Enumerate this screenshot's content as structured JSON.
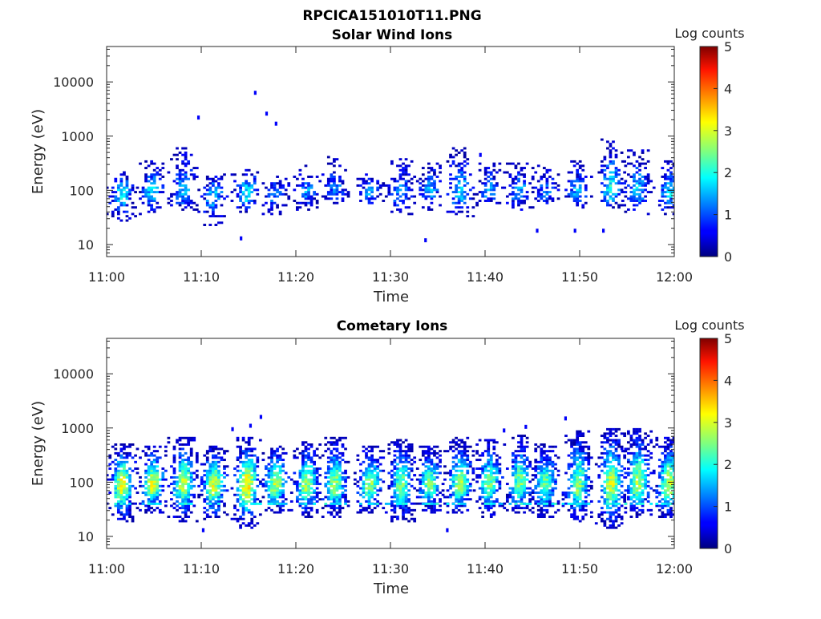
{
  "figure": {
    "title": "RPCICA151010T11.PNG"
  },
  "chart_data": [
    {
      "type": "heatmap",
      "title": "Solar Wind Ions",
      "xlabel": "Time",
      "ylabel": "Energy (eV)",
      "x_ticks": [
        "11:00",
        "11:10",
        "11:20",
        "11:30",
        "11:40",
        "11:50",
        "12:00"
      ],
      "x_range_minutes": [
        0,
        60
      ],
      "y_scale": "log",
      "y_ticks": [
        "10",
        "100",
        "1000",
        "10000"
      ],
      "ylim": [
        6,
        45000
      ],
      "colorbar": {
        "label": "Log counts",
        "ticks": [
          "0",
          "1",
          "2",
          "3",
          "4",
          "5"
        ],
        "range": [
          0,
          5
        ],
        "colormap": "jet"
      },
      "bursts": [
        {
          "t": 1.5,
          "e_low": 28,
          "e_high": 200,
          "peak": 1.9
        },
        {
          "t": 4.7,
          "e_low": 38,
          "e_high": 330,
          "peak": 1.7
        },
        {
          "t": 8.0,
          "e_low": 45,
          "e_high": 560,
          "peak": 1.5
        },
        {
          "t": 11.2,
          "e_low": 22,
          "e_high": 190,
          "peak": 1.6
        },
        {
          "t": 14.7,
          "e_low": 38,
          "e_high": 250,
          "peak": 1.9
        },
        {
          "t": 17.7,
          "e_low": 40,
          "e_high": 170,
          "peak": 1.3
        },
        {
          "t": 21.0,
          "e_low": 45,
          "e_high": 280,
          "peak": 1.3
        },
        {
          "t": 24.0,
          "e_low": 60,
          "e_high": 380,
          "peak": 1.2
        },
        {
          "t": 27.7,
          "e_low": 55,
          "e_high": 190,
          "peak": 1.3
        },
        {
          "t": 31.0,
          "e_low": 40,
          "e_high": 370,
          "peak": 1.3
        },
        {
          "t": 34.0,
          "e_low": 45,
          "e_high": 330,
          "peak": 1.4
        },
        {
          "t": 37.2,
          "e_low": 35,
          "e_high": 560,
          "peak": 1.7
        },
        {
          "t": 40.3,
          "e_low": 55,
          "e_high": 300,
          "peak": 1.3
        },
        {
          "t": 43.5,
          "e_low": 45,
          "e_high": 310,
          "peak": 1.5
        },
        {
          "t": 46.2,
          "e_low": 55,
          "e_high": 260,
          "peak": 1.2
        },
        {
          "t": 49.7,
          "e_low": 50,
          "e_high": 320,
          "peak": 1.5
        },
        {
          "t": 53.2,
          "e_low": 50,
          "e_high": 820,
          "peak": 2.0
        },
        {
          "t": 56.0,
          "e_low": 40,
          "e_high": 520,
          "peak": 1.6
        },
        {
          "t": 59.3,
          "e_low": 40,
          "e_high": 350,
          "peak": 1.7
        }
      ],
      "sparse_points": [
        {
          "t": 9.7,
          "e": 2200
        },
        {
          "t": 15.7,
          "e": 6300
        },
        {
          "t": 16.9,
          "e": 2600
        },
        {
          "t": 17.9,
          "e": 1700
        },
        {
          "t": 14.2,
          "e": 13
        },
        {
          "t": 33.7,
          "e": 12
        },
        {
          "t": 45.5,
          "e": 18
        },
        {
          "t": 49.5,
          "e": 18
        },
        {
          "t": 52.5,
          "e": 18
        },
        {
          "t": 39.5,
          "e": 450
        }
      ]
    },
    {
      "type": "heatmap",
      "title": "Cometary Ions",
      "xlabel": "Time",
      "ylabel": "Energy (eV)",
      "x_ticks": [
        "11:00",
        "11:10",
        "11:20",
        "11:30",
        "11:40",
        "11:50",
        "12:00"
      ],
      "x_range_minutes": [
        0,
        60
      ],
      "y_scale": "log",
      "y_ticks": [
        "10",
        "100",
        "1000",
        "10000"
      ],
      "ylim": [
        6,
        45000
      ],
      "colorbar": {
        "label": "Log counts",
        "ticks": [
          "0",
          "1",
          "2",
          "3",
          "4",
          "5"
        ],
        "range": [
          0,
          5
        ],
        "colormap": "jet"
      },
      "bursts": [
        {
          "t": 1.5,
          "e_low": 20,
          "e_high": 480,
          "peak": 3.1
        },
        {
          "t": 4.7,
          "e_low": 30,
          "e_high": 450,
          "peak": 3.0
        },
        {
          "t": 8.0,
          "e_low": 20,
          "e_high": 650,
          "peak": 2.8
        },
        {
          "t": 11.2,
          "e_low": 20,
          "e_high": 420,
          "peak": 2.9
        },
        {
          "t": 14.7,
          "e_low": 15,
          "e_high": 600,
          "peak": 3.2
        },
        {
          "t": 17.7,
          "e_low": 30,
          "e_high": 450,
          "peak": 2.8
        },
        {
          "t": 21.0,
          "e_low": 25,
          "e_high": 520,
          "peak": 2.7
        },
        {
          "t": 24.0,
          "e_low": 25,
          "e_high": 650,
          "peak": 2.6
        },
        {
          "t": 27.7,
          "e_low": 30,
          "e_high": 450,
          "peak": 2.6
        },
        {
          "t": 31.0,
          "e_low": 20,
          "e_high": 580,
          "peak": 2.4
        },
        {
          "t": 34.0,
          "e_low": 30,
          "e_high": 430,
          "peak": 2.5
        },
        {
          "t": 37.2,
          "e_low": 30,
          "e_high": 600,
          "peak": 2.7
        },
        {
          "t": 40.3,
          "e_low": 25,
          "e_high": 550,
          "peak": 2.5
        },
        {
          "t": 43.5,
          "e_low": 30,
          "e_high": 700,
          "peak": 2.5
        },
        {
          "t": 46.2,
          "e_low": 25,
          "e_high": 480,
          "peak": 2.4
        },
        {
          "t": 49.7,
          "e_low": 20,
          "e_high": 800,
          "peak": 2.6
        },
        {
          "t": 53.2,
          "e_low": 15,
          "e_high": 900,
          "peak": 2.9
        },
        {
          "t": 56.0,
          "e_low": 25,
          "e_high": 900,
          "peak": 2.7
        },
        {
          "t": 59.3,
          "e_low": 25,
          "e_high": 650,
          "peak": 2.9
        }
      ],
      "sparse_points": [
        {
          "t": 16.3,
          "e": 1600
        },
        {
          "t": 15.2,
          "e": 1100
        },
        {
          "t": 13.3,
          "e": 950
        },
        {
          "t": 48.5,
          "e": 1500
        },
        {
          "t": 44.3,
          "e": 1050
        },
        {
          "t": 42.0,
          "e": 900
        },
        {
          "t": 10.2,
          "e": 13
        },
        {
          "t": 36.0,
          "e": 13
        }
      ]
    }
  ]
}
